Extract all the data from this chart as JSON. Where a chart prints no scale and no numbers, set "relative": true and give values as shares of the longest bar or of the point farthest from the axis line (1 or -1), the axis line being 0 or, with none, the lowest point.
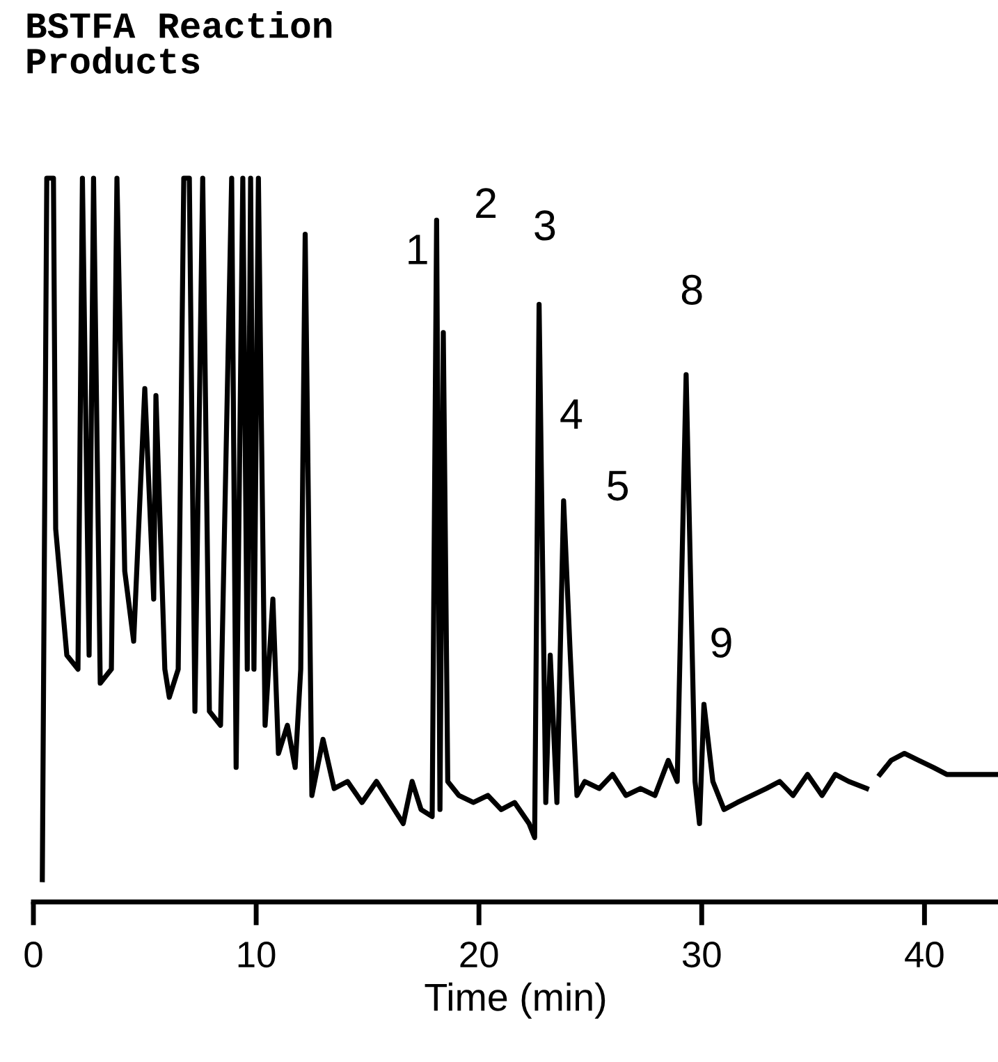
{
  "chart_data": {
    "type": "line",
    "title": "BSTFA Reaction\nProducts",
    "xlabel": "Time (min)",
    "relative": true,
    "xlim": [
      0,
      43.3
    ],
    "xticks": [
      0,
      10,
      20,
      30,
      40
    ],
    "grid": false,
    "legend": false,
    "marker": "none",
    "line_style": "solid",
    "series": [
      {
        "color": "#000000",
        "x": [
          0.4,
          0.6,
          0.9,
          1.0,
          1.5,
          2.0,
          2.2,
          2.5,
          2.7,
          3.0,
          3.5,
          3.75,
          4.1,
          4.5,
          5.0,
          5.4,
          5.5,
          5.9,
          6.1,
          6.5,
          6.75,
          7.0,
          7.25,
          7.6,
          7.9,
          8.4,
          8.9,
          9.1,
          9.4,
          9.6,
          9.75,
          9.9,
          10.1,
          10.4,
          10.75,
          11.0,
          11.4,
          11.75,
          12.0,
          12.2,
          12.5,
          13.0,
          13.5,
          14.1,
          14.75,
          15.4,
          16.0,
          16.6,
          17.0,
          17.4,
          17.9,
          18.1,
          18.25,
          18.4,
          18.6,
          19.1,
          19.75,
          20.4,
          21.0,
          21.6,
          22.25,
          22.5,
          22.7,
          23.0,
          23.2,
          23.5,
          23.8,
          24.1,
          24.4,
          24.75,
          25.4,
          26.0,
          26.6,
          27.25,
          27.9,
          28.5,
          28.9,
          29.3,
          29.7,
          29.9,
          30.1,
          30.5,
          31.0,
          31.6,
          32.25,
          32.9,
          33.5,
          34.1,
          34.75,
          35.4,
          36.0,
          36.6,
          37.4,
          37.7,
          38.0,
          38.5,
          39.1,
          39.75,
          40.4,
          41.0,
          41.6,
          42.25,
          43.3
        ],
        "values": [
          0,
          1,
          1,
          0.5,
          0.32,
          0.3,
          1,
          0.32,
          1,
          0.28,
          0.3,
          1,
          0.44,
          0.34,
          0.7,
          0.4,
          0.69,
          0.3,
          0.26,
          0.3,
          1,
          1,
          0.24,
          1,
          0.24,
          0.22,
          1,
          0.16,
          1,
          0.3,
          1,
          0.3,
          1,
          0.22,
          0.4,
          0.18,
          0.22,
          0.16,
          0.3,
          0.92,
          0.12,
          0.2,
          0.13,
          0.14,
          0.11,
          0.14,
          0.11,
          0.08,
          0.14,
          0.1,
          0.09,
          0.94,
          0.1,
          0.78,
          0.14,
          0.12,
          0.11,
          0.12,
          0.1,
          0.11,
          0.08,
          0.06,
          0.82,
          0.11,
          0.32,
          0.11,
          0.54,
          0.32,
          0.12,
          0.14,
          0.13,
          0.15,
          0.12,
          0.13,
          0.12,
          0.17,
          0.14,
          0.72,
          0.14,
          0.08,
          0.25,
          0.14,
          0.1,
          0.11,
          0.12,
          0.13,
          0.14,
          0.12,
          0.15,
          0.12,
          0.15,
          0.14,
          0.13,
          null,
          0.15,
          0.17,
          0.18,
          0.17,
          0.16,
          0.15,
          0.15,
          0.15,
          0.15
        ]
      }
    ],
    "annotations": [
      {
        "text": "1",
        "x": 18.1,
        "y": 0.94
      },
      {
        "text": "2",
        "x": 18.4,
        "y": 0.78
      },
      {
        "text": "3",
        "x": 22.7,
        "y": 0.82
      },
      {
        "text": "4",
        "x": 23.8,
        "y": 0.54
      },
      {
        "text": "5",
        "x": 23.8,
        "y": 0.54
      },
      {
        "text": "8",
        "x": 29.3,
        "y": 0.72
      },
      {
        "text": "9",
        "x": 30.1,
        "y": 0.25
      }
    ]
  }
}
